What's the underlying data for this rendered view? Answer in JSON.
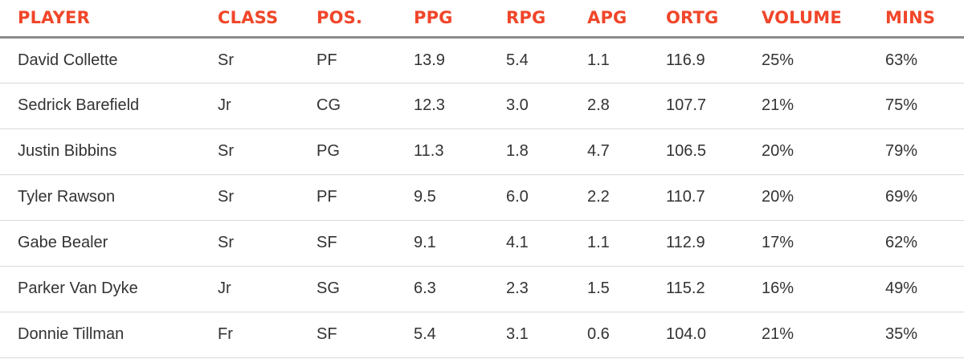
{
  "colors": {
    "header_text": "#f0462a",
    "body_text": "#333333",
    "header_rule": "#8b8b8b",
    "row_rule": "#d9d9d9"
  },
  "chart_data": {
    "type": "table",
    "columns": [
      "PLAYER",
      "CLASS",
      "POS.",
      "PPG",
      "RPG",
      "APG",
      "ORTG",
      "VOLUME",
      "MINS"
    ],
    "rows": [
      [
        "David Collette",
        "Sr",
        "PF",
        "13.9",
        "5.4",
        "1.1",
        "116.9",
        "25%",
        "63%"
      ],
      [
        "Sedrick Barefield",
        "Jr",
        "CG",
        "12.3",
        "3.0",
        "2.8",
        "107.7",
        "21%",
        "75%"
      ],
      [
        "Justin Bibbins",
        "Sr",
        "PG",
        "11.3",
        "1.8",
        "4.7",
        "106.5",
        "20%",
        "79%"
      ],
      [
        "Tyler Rawson",
        "Sr",
        "PF",
        "9.5",
        "6.0",
        "2.2",
        "110.7",
        "20%",
        "69%"
      ],
      [
        "Gabe Bealer",
        "Sr",
        "SF",
        "9.1",
        "4.1",
        "1.1",
        "112.9",
        "17%",
        "62%"
      ],
      [
        "Parker Van Dyke",
        "Jr",
        "SG",
        "6.3",
        "2.3",
        "1.5",
        "115.2",
        "16%",
        "49%"
      ],
      [
        "Donnie Tillman",
        "Fr",
        "SF",
        "5.4",
        "3.1",
        "0.6",
        "104.0",
        "21%",
        "35%"
      ]
    ]
  }
}
